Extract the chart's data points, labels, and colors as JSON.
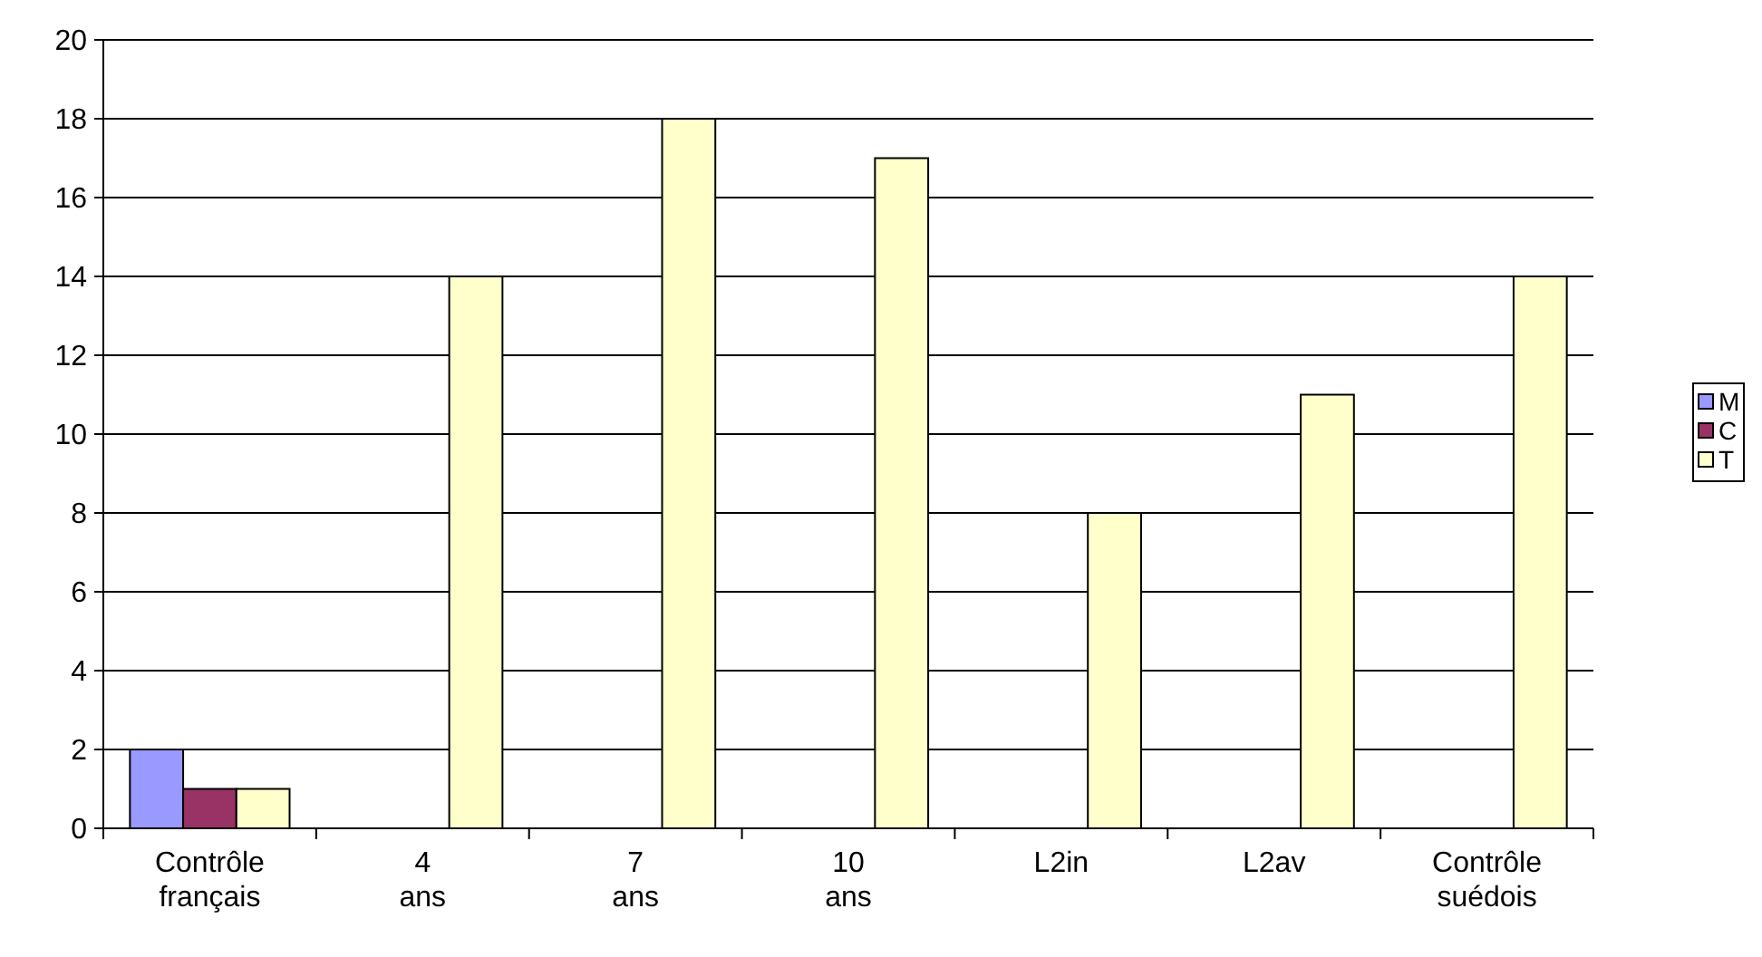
{
  "chart_data": {
    "type": "bar",
    "categories": [
      "Contrôle français",
      "4 ans",
      "7 ans",
      "10 ans",
      "L2in",
      "L2av",
      "Contrôle suédois"
    ],
    "series": [
      {
        "name": "M",
        "color": "#9999ff",
        "values": [
          2,
          0,
          0,
          0,
          0,
          0,
          0
        ]
      },
      {
        "name": "C",
        "color": "#993366",
        "values": [
          1,
          0,
          0,
          0,
          0,
          0,
          0
        ]
      },
      {
        "name": "T",
        "color": "#ffffcc",
        "values": [
          1,
          14,
          18,
          17,
          8,
          11,
          14
        ]
      }
    ],
    "ylim": [
      0,
      20
    ],
    "yticks": [
      0,
      2,
      4,
      6,
      8,
      10,
      12,
      14,
      16,
      18,
      20
    ],
    "grid": "y",
    "legend": "right"
  }
}
